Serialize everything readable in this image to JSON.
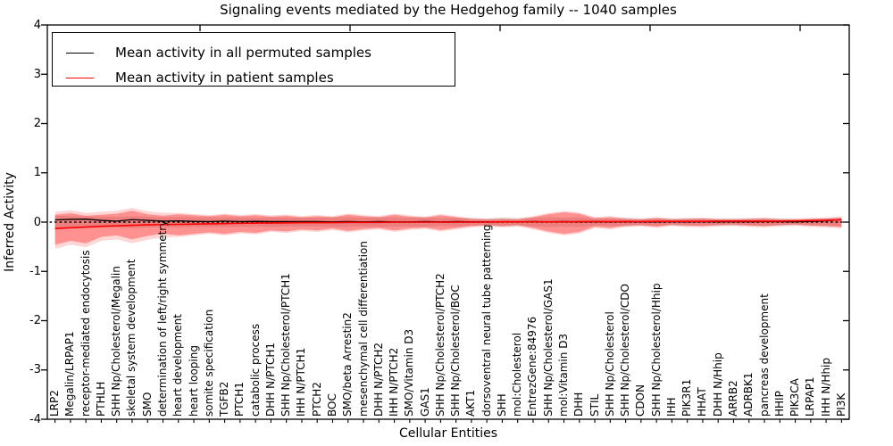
{
  "title": "Signaling events mediated by the Hedgehog family -- 1040 samples",
  "xlabel": "Cellular Entities",
  "ylabel": "Inferred Activity",
  "legend": {
    "items": [
      {
        "label": "Mean activity in all permuted samples",
        "color": "#000000"
      },
      {
        "label": "Mean activity in patient samples",
        "color": "#ff0000"
      }
    ]
  },
  "axes": {
    "yticks": [
      "4",
      "3",
      "2",
      "1",
      "0",
      "-1",
      "-2",
      "-3",
      "-4"
    ],
    "ylim": [
      -4,
      4
    ]
  },
  "colors": {
    "permuted_line": "#000000",
    "patient_line": "#ff0000",
    "patient_band": "#ff0000",
    "permuted_band": "#a8a8a8",
    "zero_line": "#000000"
  },
  "chart_data": {
    "type": "line",
    "title": "Signaling events mediated by the Hedgehog family -- 1040 samples",
    "xlabel": "Cellular Entities",
    "ylabel": "Inferred Activity",
    "ylim": [
      -4,
      4
    ],
    "grid": false,
    "legend_position": "upper left",
    "zero_line_dotted": true,
    "categories": [
      "LRP2",
      "Megalin/LRPAP1",
      "receptor-mediated endocytosis",
      "PTHLH",
      "SHH Np/Cholesterol/Megalin",
      "skeletal system development",
      "SMO",
      "determination of left/right symmetry",
      "heart development",
      "heart looping",
      "somite specification",
      "TGFB2",
      "PTCH1",
      "catabolic process",
      "DHH N/PTCH1",
      "SHH Np/Cholesterol/PTCH1",
      "IHH N/PTCH1",
      "PTCH2",
      "BOC",
      "SMO/beta Arrestin2",
      "mesenchymal cell differentiation",
      "DHH N/PTCH2",
      "IHH N/PTCH2",
      "SMO/Vitamin D3",
      "GAS1",
      "SHH Np/Cholesterol/PTCH2",
      "SHH Np/Cholesterol/BOC",
      "AKT1",
      "dorsoventral neural tube patterning",
      "SHH",
      "mol:Cholesterol",
      "EntrezGene:84976",
      "SHH Np/Cholesterol/GAS1",
      "mol:Vitamin D3",
      "DHH",
      "STIL",
      "SHH Np/Cholesterol",
      "SHH Np/Cholesterol/CDO",
      "CDON",
      "SHH Np/Cholesterol/Hhip",
      "IHH",
      "PIK3R1",
      "HHAT",
      "DHH N/Hhip",
      "ARRB2",
      "ADRBK1",
      "pancreas development",
      "HHIP",
      "PIK3CA",
      "LRPAP1",
      "IHH N/Hhip",
      "PI3K"
    ],
    "series": [
      {
        "name": "Mean activity in all permuted samples",
        "color": "#000000",
        "values": [
          0.045,
          0.055,
          0.06,
          0.035,
          0.02,
          0.05,
          0.035,
          0.02,
          0.025,
          0.015,
          0.01,
          0.02,
          0.01,
          0.015,
          0.01,
          0.01,
          0.01,
          0.01,
          0.005,
          0.01,
          0.005,
          0.01,
          0.005,
          0.005,
          0.01,
          0.005,
          0.01,
          0.005,
          0.005,
          0.005,
          0.005,
          0.01,
          0.005,
          0.01,
          0.005,
          0.01,
          0.005,
          0.01,
          0.005,
          0.005,
          0.01,
          0.005,
          0.01,
          0.005,
          0.01,
          0.005,
          0.01,
          0.01,
          0.005,
          0.015,
          0.025,
          0.05
        ]
      },
      {
        "name": "Mean activity in patient samples",
        "color": "#ff0000",
        "values": [
          -0.13,
          -0.115,
          -0.1,
          -0.085,
          -0.075,
          -0.065,
          -0.055,
          -0.05,
          -0.045,
          -0.04,
          -0.035,
          -0.03,
          -0.025,
          -0.02,
          -0.02,
          -0.015,
          -0.01,
          -0.01,
          -0.01,
          -0.005,
          -0.005,
          -0.005,
          0,
          0,
          0,
          0,
          0,
          0,
          0,
          0.005,
          0.005,
          0.005,
          0.005,
          0.005,
          0.01,
          0.01,
          0.01,
          0.01,
          0.01,
          0.015,
          0.015,
          0.015,
          0.015,
          0.02,
          0.02,
          0.02,
          0.02,
          0.02,
          0.025,
          0.03,
          0.035,
          0.045
        ]
      }
    ],
    "bands": [
      {
        "name": "patient samples activity band",
        "color": "#ff0000",
        "upper": [
          0.15,
          0.18,
          0.13,
          0.15,
          0.17,
          0.23,
          0.16,
          0.13,
          0.16,
          0.14,
          0.12,
          0.15,
          0.12,
          0.14,
          0.11,
          0.13,
          0.1,
          0.12,
          0.1,
          0.15,
          0.12,
          0.1,
          0.15,
          0.11,
          0.09,
          0.14,
          0.1,
          0.06,
          0.05,
          0.06,
          0.05,
          0.1,
          0.16,
          0.2,
          0.17,
          0.08,
          0.1,
          0.06,
          0.05,
          0.08,
          0.05,
          0.06,
          0.07,
          0.05,
          0.05,
          0.06,
          0.07,
          0.05,
          0.05,
          0.06,
          0.07,
          0.09
        ],
        "lower": [
          -0.46,
          -0.38,
          -0.43,
          -0.3,
          -0.27,
          -0.35,
          -0.28,
          -0.23,
          -0.27,
          -0.24,
          -0.21,
          -0.24,
          -0.2,
          -0.22,
          -0.17,
          -0.19,
          -0.15,
          -0.17,
          -0.13,
          -0.18,
          -0.14,
          -0.12,
          -0.17,
          -0.13,
          -0.11,
          -0.16,
          -0.12,
          -0.08,
          -0.06,
          -0.08,
          -0.06,
          -0.12,
          -0.19,
          -0.24,
          -0.2,
          -0.09,
          -0.12,
          -0.07,
          -0.06,
          -0.09,
          -0.05,
          -0.07,
          -0.08,
          -0.06,
          -0.05,
          -0.07,
          -0.08,
          -0.06,
          -0.05,
          -0.07,
          -0.08,
          -0.1
        ]
      },
      {
        "name": "permuted samples activity band",
        "color": "#a8a8a8",
        "halfwidth": [
          0.13,
          0.12,
          0.12,
          0.11,
          0.11,
          0.12,
          0.11,
          0.1,
          0.11,
          0.1,
          0.1,
          0.1,
          0.1,
          0.09,
          0.1,
          0.09,
          0.09,
          0.09,
          0.1,
          0.1,
          0.09,
          0.1,
          0.09,
          0.09,
          0.1,
          0.08,
          0.09,
          0.08,
          0.07,
          0.09,
          0.08,
          0.09,
          0.1,
          0.09,
          0.1,
          0.07,
          0.07,
          0.09,
          0.07,
          0.08,
          0.07,
          0.08,
          0.07,
          0.07,
          0.07,
          0.07,
          0.08,
          0.07,
          0.06,
          0.07,
          0.08,
          0.09
        ]
      }
    ],
    "top_axis_tick_x": [
      224,
      392,
      560,
      728,
      896
    ]
  }
}
